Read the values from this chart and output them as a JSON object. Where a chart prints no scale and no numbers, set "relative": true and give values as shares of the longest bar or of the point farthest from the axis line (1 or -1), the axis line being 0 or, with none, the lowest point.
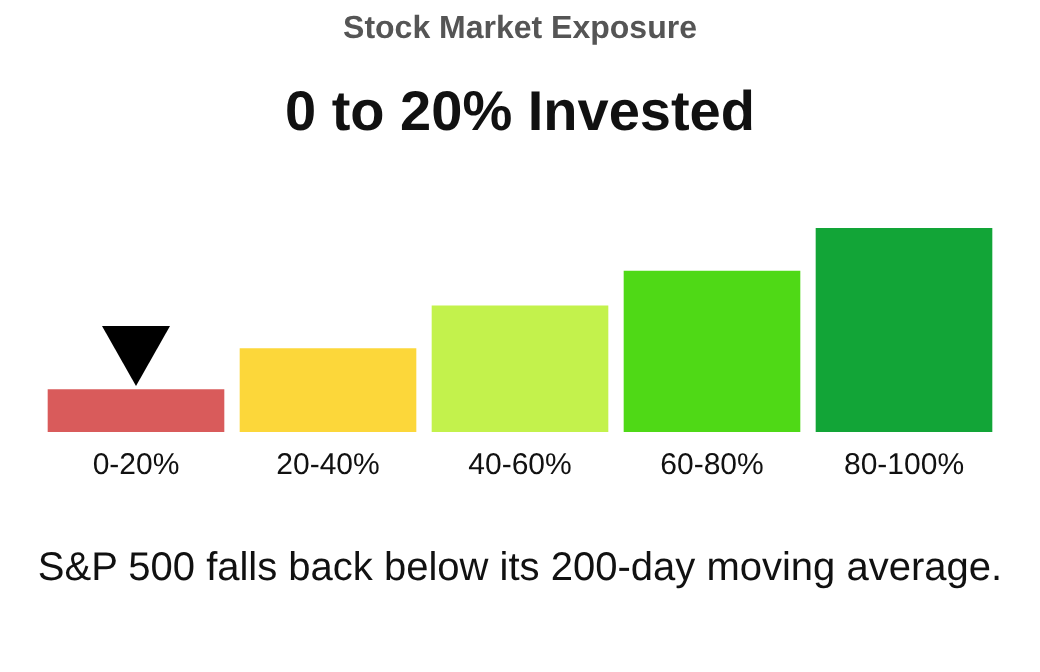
{
  "chart_data": {
    "type": "bar",
    "subtitle": "Stock Market Exposure",
    "title": "0 to 20% Invested",
    "categories": [
      "0-20%",
      "20-40%",
      "40-60%",
      "60-80%",
      "80-100%"
    ],
    "values": [
      0.21,
      0.41,
      0.62,
      0.79,
      1
    ],
    "colors": [
      "#d95b5b",
      "#fcd73a",
      "#c3f24c",
      "#4fd916",
      "#12a537"
    ],
    "relative": true,
    "grid": false,
    "legend": false,
    "annotations": [
      "S&P 500 falls back below its 200-day moving average."
    ]
  }
}
